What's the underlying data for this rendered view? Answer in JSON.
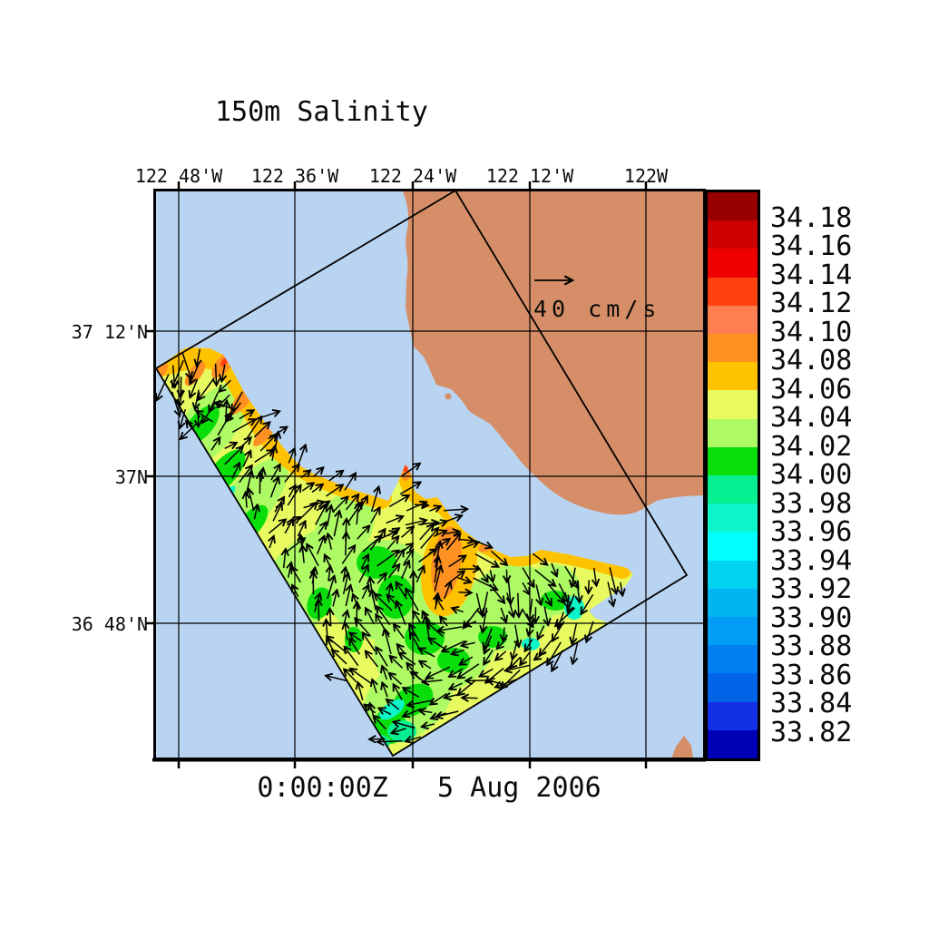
{
  "title": "150m Salinity",
  "timestamp": "0:00:00Z   5 Aug 2006",
  "scale_vector": {
    "label": "40 cm/s"
  },
  "axes": {
    "top_labels": [
      "122 48'W",
      "122 36'W",
      "122 24'W",
      "122 12'W",
      "122W"
    ],
    "left_labels": [
      "37 12'N",
      "37N",
      "36 48'N"
    ]
  },
  "colorbar": {
    "labels": [
      "34.18",
      "34.16",
      "34.14",
      "34.12",
      "34.10",
      "34.08",
      "34.06",
      "34.04",
      "34.02",
      "34.00",
      "33.98",
      "33.96",
      "33.94",
      "33.92",
      "33.90",
      "33.88",
      "33.86",
      "33.84",
      "33.82"
    ],
    "colors": [
      "#980000",
      "#CC0000",
      "#EE0000",
      "#FF4210",
      "#FF7F50",
      "#FF9122",
      "#FFC200",
      "#E8FA5F",
      "#ADFA64",
      "#0ADE0A",
      "#06EF91",
      "#0CF5C8",
      "#00FFFF",
      "#00D2F0",
      "#00B4F0",
      "#009CF5",
      "#0080F0",
      "#0064E6",
      "#1430E6",
      "#0000B4"
    ]
  },
  "map": {
    "ocean_color": "#B9D4F0",
    "land_color": "#D68E68",
    "vector_color": "#000000",
    "grid_color": "#000000"
  },
  "chart_data": {
    "type": "heatmap",
    "title": "150m Salinity",
    "timestamp": "0:00:00Z 5 Aug 2006",
    "x_tick_labels": [
      "122 48'W",
      "122 36'W",
      "122 24'W",
      "122 12'W",
      "122W"
    ],
    "y_tick_labels": [
      "37 12'N",
      "37N",
      "36 48'N"
    ],
    "colorbar_levels": [
      34.18,
      34.16,
      34.14,
      34.12,
      34.1,
      34.08,
      34.06,
      34.04,
      34.02,
      34.0,
      33.98,
      33.96,
      33.94,
      33.92,
      33.9,
      33.88,
      33.86,
      33.84,
      33.82
    ],
    "colorbar_colors": [
      "#980000",
      "#CC0000",
      "#EE0000",
      "#FF4210",
      "#FF7F50",
      "#FF9122",
      "#FFC200",
      "#E8FA5F",
      "#ADFA64",
      "#0ADE0A",
      "#06EF91",
      "#0CF5C8",
      "#00FFFF",
      "#00D2F0",
      "#00B4F0",
      "#009CF5",
      "#0080F0",
      "#0064E6",
      "#1430E6",
      "#0000B4"
    ],
    "vector_scale_label": "40 cm/s",
    "overlay": "current velocity vectors",
    "estimated_field_value_range": [
      33.94,
      34.12
    ],
    "legend_position": "right colorbar"
  }
}
